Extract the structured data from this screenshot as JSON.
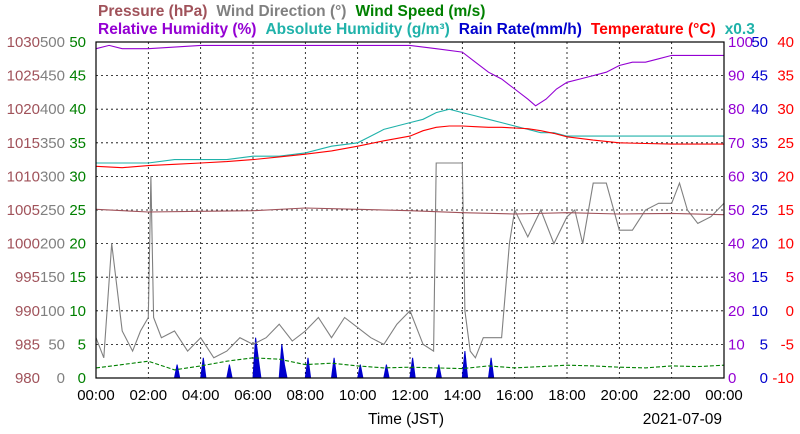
{
  "chart_data": {
    "type": "line",
    "date": "2021-07-09",
    "xlabel": "Time (JST)",
    "x_ticks": [
      "00:00",
      "02:00",
      "04:00",
      "06:00",
      "08:00",
      "10:00",
      "12:00",
      "14:00",
      "16:00",
      "18:00",
      "20:00",
      "22:00",
      "00:00"
    ],
    "grid": true,
    "legend": {
      "row1": [
        {
          "text": "Pressure (hPa)",
          "color": "#a0525a"
        },
        {
          "text": "Wind Direction (°)",
          "color": "#808080"
        },
        {
          "text": "Wind Speed (m/s)",
          "color": "#008000"
        }
      ],
      "row2": [
        {
          "text": "Relative Humidity (%)",
          "color": "#9400d3"
        },
        {
          "text": "Absolute Humidity (g/m³)",
          "color": "#20b2aa"
        },
        {
          "text": "Rain Rate(mm/h)",
          "color": "#0000cd"
        },
        {
          "text": "Temperature (°C)",
          "color": "#ff0000"
        },
        {
          "text": "x0.3",
          "color": "#20b2aa"
        }
      ]
    },
    "axes": {
      "pressure": {
        "color": "#a0525a",
        "range": [
          980,
          1030
        ],
        "ticks": [
          "1030",
          "1025",
          "1020",
          "1015",
          "1010",
          "1005",
          "1000",
          "995",
          "990",
          "985",
          "980"
        ]
      },
      "wind_direction": {
        "color": "#808080",
        "range": [
          0,
          500
        ],
        "ticks": [
          "500",
          "450",
          "400",
          "350",
          "300",
          "250",
          "200",
          "150",
          "100",
          "50",
          "0"
        ]
      },
      "wind_speed": {
        "color": "#008000",
        "range": [
          0,
          50
        ],
        "ticks": [
          "50",
          "45",
          "40",
          "35",
          "30",
          "25",
          "20",
          "15",
          "10",
          "5",
          "0"
        ]
      },
      "relative_humidity": {
        "color": "#9400d3",
        "range": [
          0,
          100
        ],
        "ticks": [
          "100",
          "90",
          "80",
          "70",
          "60",
          "50",
          "40",
          "30",
          "20",
          "10",
          "0"
        ]
      },
      "rain_rate": {
        "color": "#0000cd",
        "range": [
          0,
          50
        ],
        "ticks": [
          "50",
          "45",
          "40",
          "35",
          "30",
          "25",
          "20",
          "15",
          "10",
          "5",
          "0"
        ]
      },
      "temperature": {
        "color": "#ff0000",
        "range": [
          -10,
          40
        ],
        "ticks": [
          "40",
          "35",
          "30",
          "25",
          "20",
          "15",
          "10",
          "5",
          "0",
          "-5",
          "-10"
        ]
      }
    },
    "series": [
      {
        "name": "Pressure (hPa)",
        "axis": "pressure",
        "color": "#a0525a",
        "x": [
          0,
          2,
          4,
          6,
          8,
          10,
          12,
          14,
          16,
          18,
          20,
          22,
          24
        ],
        "values": [
          1005.1,
          1004.7,
          1004.8,
          1004.9,
          1005.3,
          1005.1,
          1004.9,
          1004.6,
          1004.4,
          1004.6,
          1004.4,
          1004.5,
          1004.3
        ]
      },
      {
        "name": "Wind Direction (°)",
        "axis": "wind_direction",
        "color": "#808080",
        "x": [
          0,
          0.3,
          0.6,
          1,
          1.4,
          1.7,
          2,
          2.1,
          2.2,
          2.5,
          3,
          3.5,
          4,
          4.5,
          5,
          5.5,
          6,
          6.5,
          7,
          7.5,
          8,
          8.5,
          9,
          9.5,
          10,
          10.5,
          11,
          11.5,
          12,
          12.5,
          12.9,
          13,
          13.5,
          14,
          14.1,
          14.3,
          14.5,
          14.8,
          15,
          15.5,
          15.8,
          16,
          16.5,
          17,
          17.5,
          18,
          18.3,
          18.6,
          19,
          19.5,
          20,
          20.5,
          21,
          21.5,
          22,
          22.3,
          22.6,
          23,
          23.5,
          24
        ],
        "values": [
          60,
          30,
          200,
          70,
          40,
          70,
          90,
          300,
          90,
          60,
          70,
          40,
          60,
          30,
          40,
          60,
          50,
          60,
          80,
          55,
          70,
          90,
          60,
          90,
          75,
          60,
          50,
          80,
          100,
          50,
          40,
          320,
          320,
          320,
          100,
          40,
          30,
          60,
          60,
          60,
          200,
          250,
          210,
          250,
          200,
          240,
          250,
          200,
          290,
          290,
          220,
          220,
          250,
          260,
          260,
          290,
          250,
          230,
          240,
          260
        ]
      },
      {
        "name": "Wind Speed (m/s)",
        "axis": "wind_speed",
        "color": "#008000",
        "x": [
          0,
          1,
          2,
          3,
          4,
          5,
          6,
          7,
          8,
          9,
          10,
          11,
          12,
          13,
          14,
          15,
          16,
          17,
          18,
          19,
          20,
          21,
          22,
          23,
          24
        ],
        "values": [
          1.5,
          2.0,
          2.5,
          1.2,
          1.8,
          2.5,
          3.0,
          2.8,
          2.0,
          2.2,
          1.8,
          1.5,
          1.6,
          1.5,
          1.4,
          1.8,
          1.5,
          1.7,
          1.9,
          1.8,
          1.6,
          1.5,
          1.8,
          1.7,
          1.9
        ]
      },
      {
        "name": "Relative Humidity (%)",
        "axis": "relative_humidity",
        "color": "#9400d3",
        "x": [
          0,
          0.5,
          1,
          2,
          4,
          6,
          8,
          10,
          12,
          13,
          14,
          14.5,
          15,
          15.5,
          16,
          16.5,
          16.8,
          17.2,
          17.6,
          18,
          18.5,
          19,
          19.5,
          20,
          20.5,
          21,
          21.5,
          22,
          22.5,
          23,
          23.5,
          24
        ],
        "values": [
          98,
          99,
          98,
          98,
          99,
          99,
          99,
          99,
          99,
          98,
          97,
          94,
          91,
          89,
          86,
          83,
          81,
          83,
          86,
          88,
          89,
          90,
          91,
          93,
          94,
          94,
          95,
          96,
          96,
          96,
          96,
          96
        ]
      },
      {
        "name": "Absolute Humidity (g/m³)",
        "axis": "absolute_humidity_x0.3",
        "color": "#20b2aa",
        "x": [
          0,
          1,
          2,
          3,
          4,
          5,
          6,
          7,
          8,
          9,
          10,
          10.5,
          11,
          11.5,
          12,
          12.5,
          13,
          13.5,
          14,
          14.5,
          15,
          15.5,
          16,
          16.5,
          17,
          17.5,
          18,
          19,
          20,
          21,
          22,
          23,
          24
        ],
        "values": [
          64,
          64,
          64,
          65,
          65,
          65,
          66,
          66,
          67,
          69,
          70,
          72,
          74,
          75,
          76,
          77,
          79,
          80,
          79,
          78,
          77,
          76,
          75,
          74,
          73,
          73,
          72,
          72,
          72,
          72,
          72,
          72,
          72
        ]
      },
      {
        "name": "Rain Rate(mm/h)",
        "axis": "rain_rate",
        "color": "#0000cd",
        "x": [
          0,
          3,
          3.1,
          3.2,
          4,
          4.1,
          4.2,
          5,
          5.1,
          5.2,
          6,
          6.1,
          6.2,
          6.3,
          7,
          7.1,
          7.2,
          7.3,
          8,
          8.1,
          8.2,
          9,
          9.1,
          9.2,
          10,
          10.1,
          10.2,
          11,
          11.1,
          11.2,
          12,
          12.1,
          12.2,
          13,
          13.1,
          13.2,
          14,
          14.1,
          14.2,
          15,
          15.1,
          15.2,
          16,
          24
        ],
        "values": [
          0,
          0,
          2,
          0,
          0,
          3,
          0,
          0,
          2,
          0,
          0,
          6,
          3,
          0,
          0,
          5,
          2,
          0,
          0,
          3,
          0,
          0,
          3,
          0,
          0,
          2,
          0,
          0,
          2,
          0,
          0,
          3,
          0,
          0,
          2,
          0,
          0,
          4,
          0,
          0,
          3,
          0,
          0,
          0
        ]
      },
      {
        "name": "Temperature (°C)",
        "axis": "temperature",
        "color": "#ff0000",
        "x": [
          0,
          1,
          2,
          3,
          4,
          5,
          6,
          7,
          8,
          9,
          10,
          11,
          12,
          12.5,
          13,
          13.5,
          14,
          14.5,
          15,
          15.5,
          16,
          16.5,
          17,
          17.5,
          18,
          19,
          20,
          21,
          22,
          23,
          24
        ],
        "values": [
          21.5,
          21.3,
          21.6,
          21.8,
          22.0,
          22.2,
          22.5,
          22.9,
          23.3,
          23.8,
          24.5,
          25.3,
          26.0,
          26.8,
          27.3,
          27.5,
          27.5,
          27.4,
          27.3,
          27.3,
          27.2,
          27.1,
          26.8,
          26.4,
          25.9,
          25.4,
          25.0,
          24.9,
          24.8,
          24.8,
          24.8
        ]
      }
    ]
  }
}
